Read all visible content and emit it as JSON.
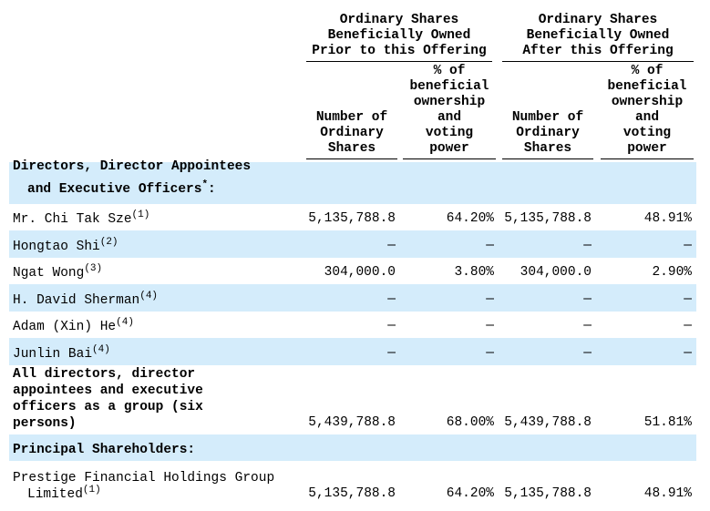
{
  "header": {
    "groups": [
      [
        "Ordinary Shares",
        "Beneficially Owned",
        "Prior to this Offering"
      ],
      [
        "Ordinary Shares",
        "Beneficially Owned",
        "After this Offering"
      ]
    ],
    "columns": [
      [
        "Number of",
        "Ordinary",
        "Shares"
      ],
      [
        "% of",
        "beneficial",
        "ownership",
        "and",
        "voting",
        "power"
      ],
      [
        "Number of",
        "Ordinary",
        "Shares"
      ],
      [
        "% of",
        "beneficial",
        "ownership",
        "and",
        "voting",
        "power"
      ]
    ]
  },
  "rows": [
    {
      "name": [
        "Directors, Director Appointees",
        "and Executive Officers"
      ],
      "note": "*",
      "suffix": ":",
      "bold": true,
      "shaded": true,
      "cells": []
    },
    {
      "name": [
        "Mr.  Chi Tak Sze"
      ],
      "note": "(1)",
      "shaded": false,
      "cells": [
        "5,135,788.8",
        "64.20%",
        "5,135,788.8",
        "48.91%"
      ]
    },
    {
      "name": [
        "Hongtao Shi"
      ],
      "note": "(2)",
      "shaded": true,
      "cells": [
        "—",
        "—",
        "—",
        "—"
      ]
    },
    {
      "name": [
        "Ngat Wong"
      ],
      "note": "(3)",
      "shaded": false,
      "cells": [
        "304,000.0",
        "3.80%",
        "304,000.0",
        "2.90%"
      ]
    },
    {
      "name": [
        "H.  David Sherman"
      ],
      "note": "(4)",
      "shaded": true,
      "cells": [
        "—",
        "—",
        "—",
        "—"
      ]
    },
    {
      "name": [
        "Adam (Xin) He"
      ],
      "note": "(4)",
      "shaded": false,
      "cells": [
        "—",
        "—",
        "—",
        "—"
      ]
    },
    {
      "name": [
        "Junlin Bai"
      ],
      "note": "(4)",
      "shaded": true,
      "cells": [
        "—",
        "—",
        "—",
        "—"
      ]
    },
    {
      "name": [
        "All directors, director",
        "appointees and executive",
        "officers as a group (six",
        "persons)"
      ],
      "bold": true,
      "shaded": false,
      "cells": [
        "5,439,788.8",
        "68.00%",
        "5,439,788.8",
        "51.81%"
      ]
    },
    {
      "name": [
        "Principal Shareholders:"
      ],
      "bold": true,
      "shaded": true,
      "cells": []
    },
    {
      "name": [
        "Prestige Financial Holdings Group",
        "Limited"
      ],
      "note": "(1)",
      "shaded": false,
      "cells": [
        "5,135,788.8",
        "64.20%",
        "5,135,788.8",
        "48.91%"
      ]
    }
  ]
}
